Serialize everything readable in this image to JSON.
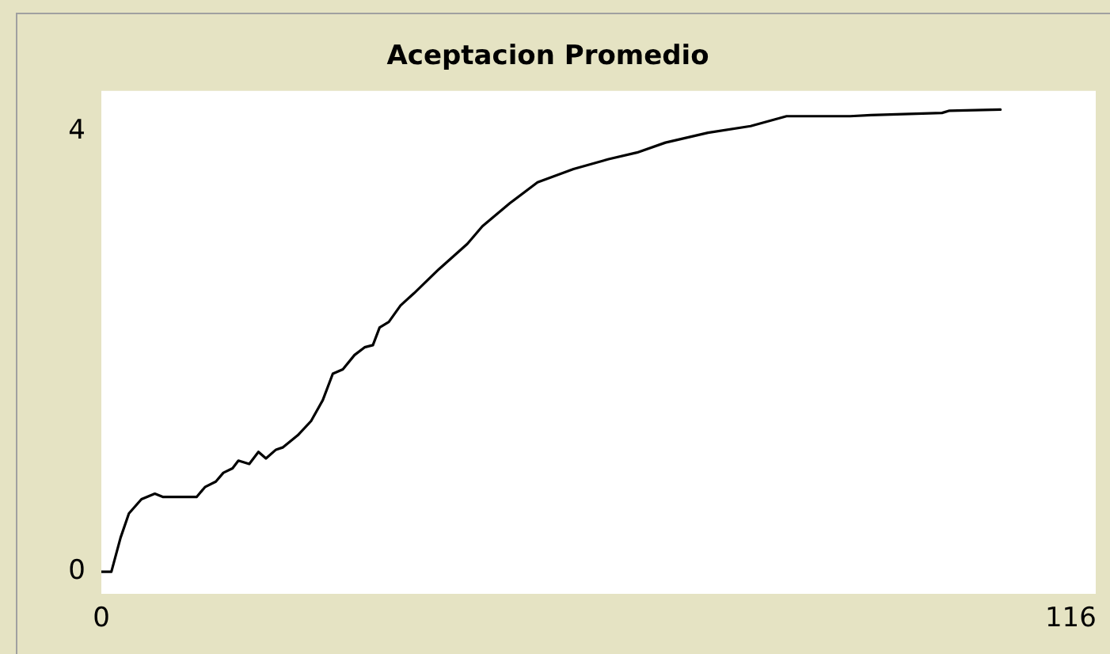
{
  "chart_data": {
    "type": "line",
    "title": "Aceptacion Promedio",
    "xlim": [
      0,
      119
    ],
    "xticks": [
      0,
      116
    ],
    "ylim": [
      -0.2,
      4.37
    ],
    "yticks": [
      0,
      4
    ],
    "grid": false,
    "legend": false,
    "marker": "none",
    "line_style": "solid",
    "series": [
      {
        "color": "#000000",
        "x": [
          0,
          1.2,
          2.3,
          3.3,
          4.8,
          6.4,
          7.4,
          11.4,
          12.4,
          13.7,
          14.6,
          15.7,
          16.4,
          17.7,
          18.8,
          19.7,
          20.9,
          21.7,
          23.5,
          25.1,
          26.5,
          27.7,
          28.9,
          30.3,
          31.5,
          32.5,
          33.3,
          34.4,
          35.8,
          37.4,
          40.4,
          43.8,
          45.6,
          48.9,
          52.2,
          56.5,
          60.7,
          64.1,
          67.5,
          72.6,
          77.7,
          82.0,
          89.6,
          92.1,
          100.6,
          101.5,
          107.6
        ],
        "values": [
          0,
          0,
          0.31,
          0.53,
          0.66,
          0.71,
          0.68,
          0.68,
          0.77,
          0.82,
          0.9,
          0.94,
          1.01,
          0.98,
          1.09,
          1.03,
          1.11,
          1.13,
          1.24,
          1.37,
          1.56,
          1.8,
          1.84,
          1.97,
          2.04,
          2.06,
          2.22,
          2.27,
          2.42,
          2.53,
          2.75,
          2.98,
          3.14,
          3.35,
          3.54,
          3.66,
          3.75,
          3.81,
          3.9,
          3.99,
          4.05,
          4.14,
          4.14,
          4.15,
          4.17,
          4.19,
          4.2
        ]
      }
    ]
  }
}
